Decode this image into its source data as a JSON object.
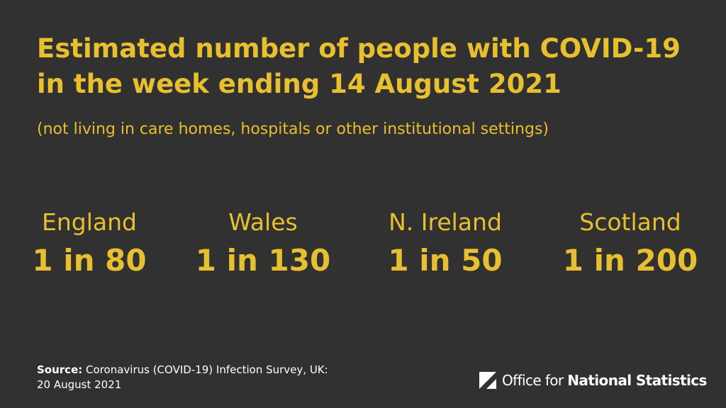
{
  "header": {
    "title": "Estimated number of people with COVID-19 in the week ending 14 August 2021",
    "subtitle": "(not living in care homes, hospitals or other institutional settings)"
  },
  "stats": [
    {
      "region": "England",
      "value": "1 in 80"
    },
    {
      "region": "Wales",
      "value": "1 in 130"
    },
    {
      "region": "N. Ireland",
      "value": "1 in 50"
    },
    {
      "region": "Scotland",
      "value": "1 in 200"
    }
  ],
  "source": {
    "label": "Source:",
    "text": "Coronavirus (COVID-19) Infection Survey, UK:",
    "date": "20 August 2021"
  },
  "logo": {
    "icon": "ons-logo-icon",
    "prefix": "Office for ",
    "bold": "National Statistics"
  },
  "colors": {
    "background": "#323132",
    "accent": "#e8bf2e",
    "text": "#ffffff"
  }
}
